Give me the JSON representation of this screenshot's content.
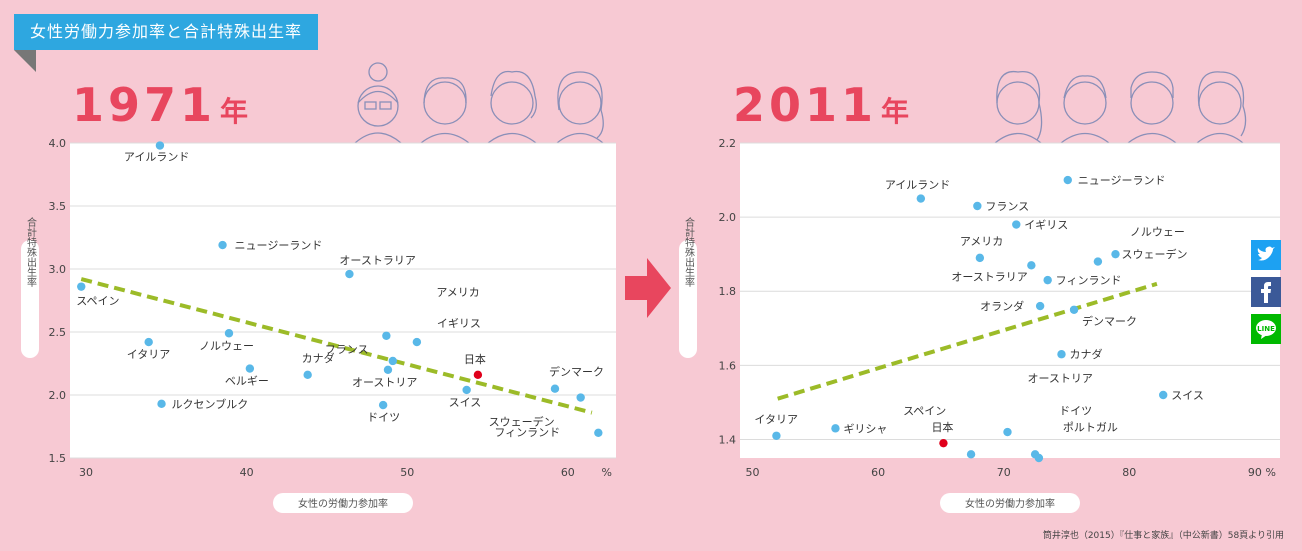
{
  "banner": {
    "title": "女性労働力参加率と合計特殊出生率"
  },
  "panels": [
    {
      "year": "1971",
      "unit": "年"
    },
    {
      "year": "2011",
      "unit": "年"
    }
  ],
  "source": "筒井淳也（2015）『仕事と家族』（中公新書）58頁より引用",
  "social": [
    "twitter-icon",
    "facebook-icon",
    "line-icon"
  ],
  "colors": {
    "point": "#59b8e8",
    "highlight": "#e0001b",
    "trend": "#9cbb28",
    "accent": "#e8465e"
  },
  "chart_data": [
    {
      "type": "scatter",
      "title": "1971年",
      "xlabel": "女性の労働力参加率",
      "ylabel": "合計特殊出生率",
      "xlim": [
        29,
        63
      ],
      "ylim": [
        1.5,
        4.0
      ],
      "xticks": [
        "30",
        "40",
        "50",
        "60"
      ],
      "xunit": "%",
      "yticks": [
        "1.5",
        "2.0",
        "2.5",
        "3.0",
        "3.5",
        "4.0"
      ],
      "trendline": [
        [
          29.7,
          2.92
        ],
        [
          61.5,
          1.86
        ]
      ],
      "points": [
        {
          "name": "アイルランド",
          "x": 34.6,
          "y": 3.98
        },
        {
          "name": "ニュージーランド",
          "x": 38.5,
          "y": 3.19
        },
        {
          "name": "オーストラリア",
          "x": 46.4,
          "y": 2.96
        },
        {
          "name": "スペイン",
          "x": 29.7,
          "y": 2.86
        },
        {
          "name": "アメリカ",
          "x": 48.7,
          "y": 2.47
        },
        {
          "name": "フランス",
          "x": 49.1,
          "y": 2.27
        },
        {
          "name": "イギリス",
          "x": 50.6,
          "y": 2.42
        },
        {
          "name": "イタリア",
          "x": 33.9,
          "y": 2.42
        },
        {
          "name": "ノルウェー",
          "x": 38.9,
          "y": 2.49
        },
        {
          "name": "ベルギー",
          "x": 40.2,
          "y": 2.21
        },
        {
          "name": "カナダ",
          "x": 43.8,
          "y": 2.16
        },
        {
          "name": "オーストリア",
          "x": 48.8,
          "y": 2.2
        },
        {
          "name": "日本",
          "x": 54.4,
          "y": 2.16,
          "highlight": true
        },
        {
          "name": "スイス",
          "x": 53.7,
          "y": 2.04
        },
        {
          "name": "デンマーク",
          "x": 59.2,
          "y": 2.05
        },
        {
          "name": "スウェーデン",
          "x": 60.8,
          "y": 1.98
        },
        {
          "name": "フィンランド",
          "x": 61.9,
          "y": 1.7
        },
        {
          "name": "ルクセンブルク",
          "x": 34.7,
          "y": 1.93
        },
        {
          "name": "ドイツ",
          "x": 48.5,
          "y": 1.92
        }
      ]
    },
    {
      "type": "scatter",
      "title": "2011年",
      "xlabel": "女性の労働力参加率",
      "ylabel": "合計特殊出生率",
      "xlim": [
        49,
        92
      ],
      "ylim": [
        1.35,
        2.2
      ],
      "xticks": [
        "50",
        "60",
        "70",
        "80",
        "90"
      ],
      "xunit": "%",
      "yticks": [
        "1.4",
        "1.6",
        "1.8",
        "2.0",
        "2.2"
      ],
      "trendline": [
        [
          52,
          1.51
        ],
        [
          82.2,
          1.82
        ]
      ],
      "points": [
        {
          "name": "ニュージーランド",
          "x": 75.1,
          "y": 2.1
        },
        {
          "name": "アイルランド",
          "x": 63.4,
          "y": 2.05
        },
        {
          "name": "フランス",
          "x": 67.9,
          "y": 2.03
        },
        {
          "name": "イギリス",
          "x": 71,
          "y": 1.98
        },
        {
          "name": "アメリカ",
          "x": 68.1,
          "y": 1.89
        },
        {
          "name": "ノルウェー",
          "x": 77.5,
          "y": 1.88
        },
        {
          "name": "スウェーデン",
          "x": 78.9,
          "y": 1.9
        },
        {
          "name": "オーストラリア",
          "x": 72.2,
          "y": 1.87
        },
        {
          "name": "フィンランド",
          "x": 73.5,
          "y": 1.83
        },
        {
          "name": "オランダ",
          "x": 72.9,
          "y": 1.76
        },
        {
          "name": "デンマーク",
          "x": 75.6,
          "y": 1.75
        },
        {
          "name": "カナダ",
          "x": 74.6,
          "y": 1.63
        },
        {
          "name": "スイス",
          "x": 82.7,
          "y": 1.52
        },
        {
          "name": "イタリア",
          "x": 51.9,
          "y": 1.41
        },
        {
          "name": "ギリシャ",
          "x": 56.6,
          "y": 1.43
        },
        {
          "name": "日本",
          "x": 65.2,
          "y": 1.39,
          "highlight": true
        },
        {
          "name": "スペイン",
          "x": 67.4,
          "y": 1.36
        },
        {
          "name": "オーストリア",
          "x": 70.3,
          "y": 1.42
        },
        {
          "name": "ドイツ",
          "x": 72.5,
          "y": 1.36
        },
        {
          "name": "ポルトガル",
          "x": 72.8,
          "y": 1.35
        }
      ]
    }
  ]
}
